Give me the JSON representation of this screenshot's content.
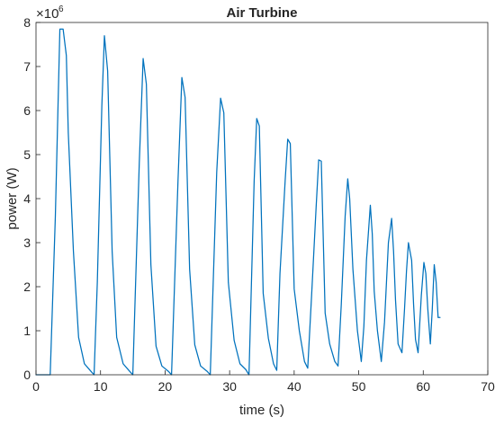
{
  "chart_data": {
    "type": "line",
    "title": "Air Turbine",
    "xlabel": "time (s)",
    "ylabel": "power (W)",
    "y_exponent_label": "×10",
    "y_exponent_power": "6",
    "xlim": [
      0,
      70
    ],
    "ylim": [
      0,
      8000000
    ],
    "x_ticks": [
      0,
      10,
      20,
      30,
      40,
      50,
      60,
      70
    ],
    "y_ticks": [
      0,
      1000000,
      2000000,
      3000000,
      4000000,
      5000000,
      6000000,
      7000000,
      8000000
    ],
    "x_tick_labels": [
      "0",
      "10",
      "20",
      "30",
      "40",
      "50",
      "60",
      "70"
    ],
    "y_tick_labels": [
      "0",
      "1",
      "2",
      "3",
      "4",
      "5",
      "6",
      "7",
      "8"
    ],
    "grid": false,
    "line_color": "#0072BD",
    "series": [
      {
        "x": [
          0,
          2.2,
          3.0,
          3.7,
          4.2,
          4.7,
          5.0,
          5.8,
          6.6,
          7.5,
          8.5,
          9.0,
          9.5,
          10.2,
          10.6,
          11.1,
          11.8,
          12.5,
          13.5,
          14.5,
          15.0,
          16.0,
          16.6,
          17.1,
          17.8,
          18.6,
          19.5,
          20.5,
          21.0,
          22.0,
          22.6,
          23.1,
          23.8,
          24.6,
          25.5,
          26.5,
          27.0,
          28.0,
          28.6,
          29.1,
          29.8,
          30.7,
          31.6,
          32.5,
          33.0,
          33.8,
          34.2,
          34.6,
          35.2,
          36.0,
          36.8,
          37.3,
          37.8,
          38.6,
          39.0,
          39.4,
          40.0,
          40.8,
          41.6,
          42.1,
          42.7,
          43.4,
          43.8,
          44.2,
          44.8,
          45.5,
          46.3,
          46.8,
          47.3,
          47.9,
          48.3,
          48.6,
          49.1,
          49.8,
          50.4,
          50.8,
          51.2,
          51.8,
          52.1,
          52.4,
          52.9,
          53.5,
          54.0,
          54.3,
          54.6,
          55.1,
          55.4,
          55.7,
          56.1,
          56.7,
          57.1,
          57.4,
          57.7,
          58.2,
          58.5,
          58.8,
          59.2,
          59.7,
          60.1,
          60.4,
          60.7,
          61.1,
          61.4,
          61.7,
          62.0,
          62.3,
          62.6
        ],
        "y": [
          0,
          0,
          3600000,
          7850000,
          7850000,
          7250000,
          5500000,
          2800000,
          850000,
          250000,
          80000,
          0,
          2100000,
          6100000,
          7700000,
          6900000,
          2800000,
          850000,
          250000,
          80000,
          0,
          4800000,
          7180000,
          6600000,
          2500000,
          650000,
          200000,
          80000,
          0,
          4400000,
          6750000,
          6300000,
          2400000,
          680000,
          200000,
          80000,
          0,
          4600000,
          6280000,
          5950000,
          2100000,
          780000,
          250000,
          120000,
          0,
          4400000,
          5820000,
          5650000,
          1850000,
          830000,
          250000,
          100000,
          2300000,
          4400000,
          5350000,
          5250000,
          1950000,
          1000000,
          300000,
          150000,
          1800000,
          3800000,
          4880000,
          4850000,
          1400000,
          700000,
          300000,
          200000,
          1600000,
          3600000,
          4450000,
          4000000,
          2400000,
          1000000,
          300000,
          1100000,
          2600000,
          3850000,
          3200000,
          1900000,
          1000000,
          300000,
          1200000,
          2100000,
          3000000,
          3550000,
          2800000,
          1700000,
          700000,
          500000,
          1500000,
          2350000,
          3000000,
          2600000,
          1600000,
          800000,
          500000,
          1800000,
          2550000,
          2300000,
          1500000,
          700000,
          1500000,
          2500000,
          2100000,
          1300000,
          1300000
        ]
      }
    ]
  }
}
